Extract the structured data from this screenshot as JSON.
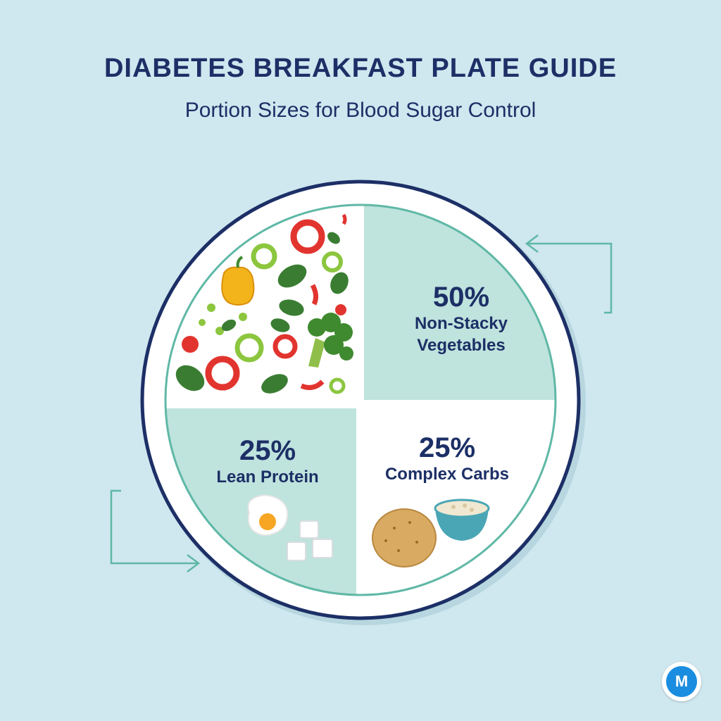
{
  "header": {
    "title": "DIABETES BREAKFAST PLATE GUIDE",
    "subtitle": "Portion Sizes for Blood Sugar Control"
  },
  "sections": [
    {
      "percent": "50%",
      "label_lines": [
        "Non-Stacky",
        "Vegetables"
      ]
    },
    {
      "percent": "25%",
      "label_lines": [
        "Lean Protein"
      ]
    },
    {
      "percent": "25%",
      "label_lines": [
        "Complex Carbs"
      ]
    }
  ],
  "logo": {
    "letter": "M"
  },
  "colors": {
    "background": "#cfe7ef",
    "plate_rim": "#1c2f66",
    "section_fill": "#bfe3dd",
    "accent": "#5fb8a6",
    "text": "#1c2f66"
  }
}
